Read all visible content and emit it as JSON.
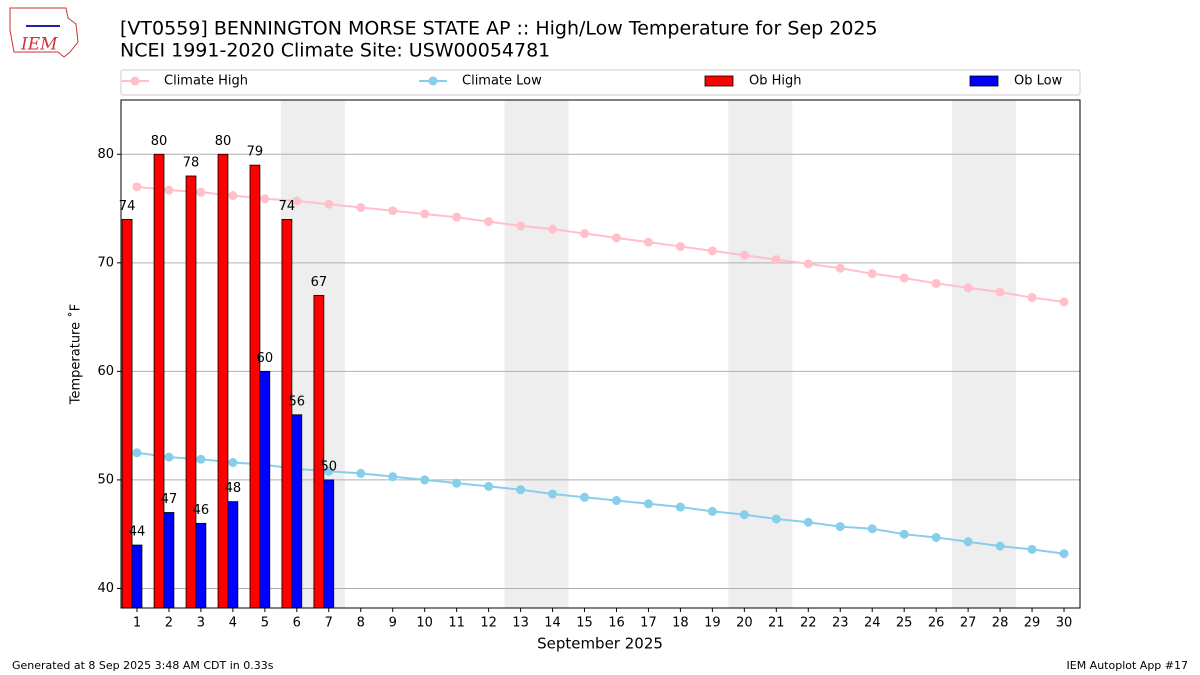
{
  "chart_data": {
    "type": "bar",
    "title": "[VT0559] BENNINGTON MORSE STATE AP :: High/Low Temperature for Sep 2025",
    "subtitle": "NCEI 1991-2020 Climate Site: USW00054781",
    "logo_text": "IEM",
    "x_label": "September 2025",
    "y_label": "Temperature ˚F",
    "footer_left": "Generated at 8 Sep 2025 3:48 AM CDT in 0.33s",
    "footer_right": "IEM Autoplot App #17",
    "x": [
      1,
      2,
      3,
      4,
      5,
      6,
      7,
      8,
      9,
      10,
      11,
      12,
      13,
      14,
      15,
      16,
      17,
      18,
      19,
      20,
      21,
      22,
      23,
      24,
      25,
      26,
      27,
      28,
      29,
      30
    ],
    "xlim": [
      0.5,
      30.5
    ],
    "xticks": [
      1,
      2,
      3,
      4,
      5,
      6,
      7,
      8,
      9,
      10,
      11,
      12,
      13,
      14,
      15,
      16,
      17,
      18,
      19,
      20,
      21,
      22,
      23,
      24,
      25,
      26,
      27,
      28,
      29,
      30
    ],
    "ylim": [
      38.2,
      85
    ],
    "yticks": [
      40,
      50,
      60,
      70,
      80
    ],
    "grid": true,
    "shaded_ranges": [
      [
        5.5,
        7.5
      ],
      [
        12.5,
        14.5
      ],
      [
        19.5,
        21.5
      ],
      [
        26.5,
        28.5
      ]
    ],
    "shade_color": "#eeeeee",
    "series": [
      {
        "name": "Climate High",
        "kind": "line",
        "color": "#ffc0cb",
        "values": [
          77.0,
          76.7,
          76.5,
          76.2,
          75.9,
          75.7,
          75.4,
          75.1,
          74.8,
          74.5,
          74.2,
          73.8,
          73.4,
          73.1,
          72.7,
          72.3,
          71.9,
          71.5,
          71.1,
          70.7,
          70.3,
          69.9,
          69.5,
          69.0,
          68.6,
          68.1,
          67.7,
          67.3,
          66.8,
          66.4
        ]
      },
      {
        "name": "Climate Low",
        "kind": "line",
        "color": "#87ceeb",
        "values": [
          52.5,
          52.1,
          51.9,
          51.6,
          51.4,
          51.0,
          50.8,
          50.6,
          50.3,
          50.0,
          49.7,
          49.4,
          49.1,
          48.7,
          48.4,
          48.1,
          47.8,
          47.5,
          47.1,
          46.8,
          46.4,
          46.1,
          45.7,
          45.5,
          45.0,
          44.7,
          44.3,
          43.9,
          43.6,
          43.2
        ]
      },
      {
        "name": "Ob High",
        "kind": "bar",
        "color": "#ff0000",
        "values": [
          74,
          80,
          78,
          80,
          79,
          74,
          67,
          null,
          null,
          null,
          null,
          null,
          null,
          null,
          null,
          null,
          null,
          null,
          null,
          null,
          null,
          null,
          null,
          null,
          null,
          null,
          null,
          null,
          null,
          null
        ]
      },
      {
        "name": "Ob Low",
        "kind": "bar",
        "color": "#0000ff",
        "values": [
          44,
          47,
          46,
          48,
          60,
          56,
          50,
          null,
          null,
          null,
          null,
          null,
          null,
          null,
          null,
          null,
          null,
          null,
          null,
          null,
          null,
          null,
          null,
          null,
          null,
          null,
          null,
          null,
          null,
          null
        ]
      }
    ]
  }
}
